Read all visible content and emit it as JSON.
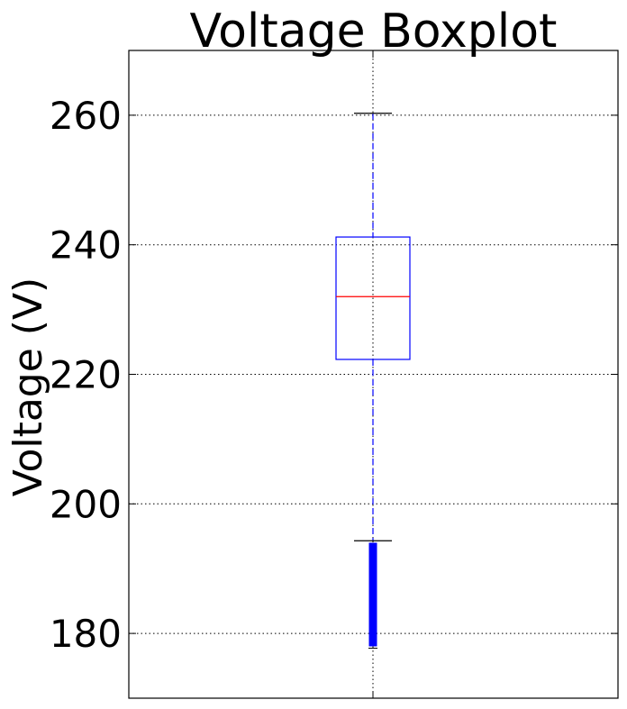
{
  "chart_data": {
    "type": "box",
    "title": "Voltage Boxplot",
    "xlabel": "",
    "ylabel": "Voltage (V)",
    "ylim": [
      170,
      270
    ],
    "yticks": [
      180,
      200,
      220,
      240,
      260
    ],
    "grid": true,
    "series": [
      {
        "whisker_low": 194.3,
        "q1": 222.3,
        "median": 232.0,
        "q3": 241.2,
        "whisker_high": 260.3,
        "outliers_range": [
          178.0,
          194.0
        ]
      }
    ],
    "colors": {
      "box": "#0000ff",
      "median": "#ff0000",
      "whisker": "#0000ff",
      "cap": "#000000",
      "outlier": "#0000ff",
      "grid": "#000000"
    }
  }
}
